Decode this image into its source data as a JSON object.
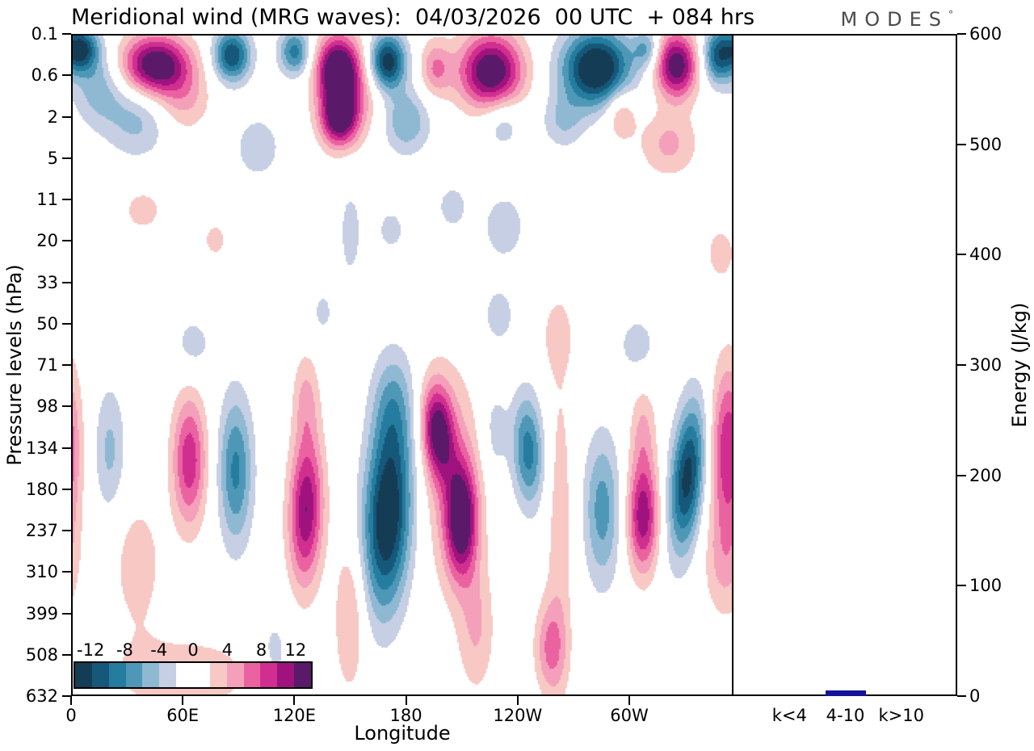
{
  "header": {
    "logo_letters": "MODES",
    "logo_degree": "°"
  },
  "chart_data": {
    "type": "heatmap",
    "title": "Meridional wind (MRG waves):  04/03/2026  00 UTC  + 084 hrs",
    "x_axis": {
      "label": "Longitude",
      "tick_labels": [
        "0",
        "60E",
        "120E",
        "180",
        "120W",
        "60W"
      ],
      "tick_lons": [
        0,
        60,
        120,
        180,
        240,
        300
      ],
      "lon_range": [
        0,
        356
      ]
    },
    "y_axis": {
      "label": "Pressure levels (hPa)",
      "tick_labels": [
        "0.1",
        "0.6",
        "2",
        "5",
        "11",
        "20",
        "33",
        "50",
        "71",
        "98",
        "134",
        "180",
        "237",
        "310",
        "399",
        "508",
        "632"
      ]
    },
    "colorbar": {
      "tick_labels": [
        "-12",
        "-8",
        "-4",
        "0",
        "4",
        "8",
        "12"
      ],
      "level_boundaries": [
        -12,
        -10,
        -8,
        -6,
        -4,
        -2,
        0,
        2,
        4,
        6,
        8,
        10,
        12
      ],
      "band_colors": [
        "#153c55",
        "#16587a",
        "#247c9e",
        "#4f97b7",
        "#8fb9d3",
        "#c6cfe3",
        "#ffffff",
        "#ffffff",
        "#f8c8c5",
        "#f4a0ba",
        "#eb62a1",
        "#d02f90",
        "#a0137e",
        "#5a1a69"
      ]
    },
    "field_anomalies": [
      {
        "lon": 4,
        "y": 0.02,
        "sx": 7,
        "sy": 0.025,
        "amp": -13
      },
      {
        "lon": 14,
        "y": 0.08,
        "sx": 10,
        "sy": 0.04,
        "amp": -5
      },
      {
        "lon": 35,
        "y": 0.13,
        "sx": 12,
        "sy": 0.04,
        "amp": -4.5
      },
      {
        "lon": 45,
        "y": 0.045,
        "sx": 13,
        "sy": 0.032,
        "amp": 15
      },
      {
        "lon": 60,
        "y": 0.1,
        "sx": 10,
        "sy": 0.035,
        "amp": 4
      },
      {
        "lon": 86,
        "y": 0.03,
        "sx": 7,
        "sy": 0.028,
        "amp": -12
      },
      {
        "lon": 100,
        "y": 0.17,
        "sx": 9,
        "sy": 0.035,
        "amp": -3.5
      },
      {
        "lon": 120,
        "y": 0.025,
        "sx": 6,
        "sy": 0.025,
        "amp": -9
      },
      {
        "lon": 143,
        "y": 0.05,
        "sx": 8,
        "sy": 0.035,
        "amp": 14
      },
      {
        "lon": 144,
        "y": 0.125,
        "sx": 7,
        "sy": 0.03,
        "amp": 13
      },
      {
        "lon": 150,
        "y": 0.085,
        "sx": 12,
        "sy": 0.05,
        "amp": 5
      },
      {
        "lon": 170,
        "y": 0.04,
        "sx": 7,
        "sy": 0.03,
        "amp": -14
      },
      {
        "lon": 180,
        "y": 0.13,
        "sx": 9,
        "sy": 0.035,
        "amp": -6
      },
      {
        "lon": 196,
        "y": 0.05,
        "sx": 6,
        "sy": 0.03,
        "amp": 6
      },
      {
        "lon": 226,
        "y": 0.055,
        "sx": 12,
        "sy": 0.04,
        "amp": 15
      },
      {
        "lon": 232,
        "y": 0.13,
        "sx": 8,
        "sy": 0.03,
        "amp": -4
      },
      {
        "lon": 265,
        "y": 0.13,
        "sx": 8,
        "sy": 0.03,
        "amp": -4
      },
      {
        "lon": 283,
        "y": 0.05,
        "sx": 13,
        "sy": 0.04,
        "amp": -16
      },
      {
        "lon": 296,
        "y": 0.115,
        "sx": 6,
        "sy": 0.03,
        "amp": 5
      },
      {
        "lon": 310,
        "y": 0.02,
        "sx": 5,
        "sy": 0.02,
        "amp": -6
      },
      {
        "lon": 326,
        "y": 0.045,
        "sx": 8,
        "sy": 0.035,
        "amp": 14
      },
      {
        "lon": 322,
        "y": 0.165,
        "sx": 11,
        "sy": 0.035,
        "amp": 4.5
      },
      {
        "lon": 349,
        "y": 0.03,
        "sx": 6,
        "sy": 0.03,
        "amp": -11
      },
      {
        "lon": 38,
        "y": 0.265,
        "sx": 9,
        "sy": 0.028,
        "amp": 2.8
      },
      {
        "lon": 77,
        "y": 0.31,
        "sx": 6,
        "sy": 0.025,
        "amp": 2.6
      },
      {
        "lon": 150,
        "y": 0.3,
        "sx": 5,
        "sy": 0.06,
        "amp": -2.8
      },
      {
        "lon": 172,
        "y": 0.295,
        "sx": 7,
        "sy": 0.03,
        "amp": -2.6
      },
      {
        "lon": 205,
        "y": 0.26,
        "sx": 7,
        "sy": 0.03,
        "amp": -2.8
      },
      {
        "lon": 233,
        "y": 0.29,
        "sx": 9,
        "sy": 0.04,
        "amp": -3.2
      },
      {
        "lon": 350,
        "y": 0.33,
        "sx": 7,
        "sy": 0.035,
        "amp": 2.8
      },
      {
        "lon": 230,
        "y": 0.425,
        "sx": 7,
        "sy": 0.035,
        "amp": -3
      },
      {
        "lon": 262,
        "y": 0.455,
        "sx": 6,
        "sy": 0.04,
        "amp": 2.8
      },
      {
        "lon": 305,
        "y": 0.47,
        "sx": 8,
        "sy": 0.035,
        "amp": -3
      },
      {
        "lon": 65,
        "y": 0.47,
        "sx": 8,
        "sy": 0.035,
        "amp": -3
      },
      {
        "lon": 135,
        "y": 0.42,
        "sx": 5,
        "sy": 0.03,
        "amp": -2.5
      },
      {
        "lon": 354,
        "y": 0.63,
        "sx": 7,
        "sy": 0.09,
        "amp": 10
      },
      {
        "lon": 352,
        "y": 0.8,
        "sx": 8,
        "sy": 0.06,
        "amp": 4
      },
      {
        "lon": 20,
        "y": 0.63,
        "sx": 6,
        "sy": 0.07,
        "amp": -4.5
      },
      {
        "lon": 35,
        "y": 0.8,
        "sx": 10,
        "sy": 0.07,
        "amp": 3.2
      },
      {
        "lon": 63,
        "y": 0.645,
        "sx": 6.5,
        "sy": 0.07,
        "amp": 9.5
      },
      {
        "lon": 88,
        "y": 0.66,
        "sx": 6.5,
        "sy": 0.08,
        "amp": -8.5
      },
      {
        "lon": 126,
        "y": 0.72,
        "sx": 6.5,
        "sy": 0.08,
        "amp": 12,
        "tilt": -8
      },
      {
        "lon": 126,
        "y": 0.55,
        "sx": 5,
        "sy": 0.05,
        "amp": 4
      },
      {
        "lon": 170,
        "y": 0.73,
        "sx": 9,
        "sy": 0.1,
        "amp": -15,
        "tilt": -15
      },
      {
        "lon": 173,
        "y": 0.56,
        "sx": 8,
        "sy": 0.06,
        "amp": -5
      },
      {
        "lon": 150,
        "y": 0.88,
        "sx": 6,
        "sy": 0.08,
        "amp": 4.5
      },
      {
        "lon": 197,
        "y": 0.6,
        "sx": 6,
        "sy": 0.05,
        "amp": 12,
        "tilt": 18
      },
      {
        "lon": 210,
        "y": 0.735,
        "sx": 6,
        "sy": 0.06,
        "amp": 13
      },
      {
        "lon": 205,
        "y": 0.67,
        "sx": 11,
        "sy": 0.12,
        "amp": 4.5
      },
      {
        "lon": 218,
        "y": 0.9,
        "sx": 7,
        "sy": 0.07,
        "amp": 4
      },
      {
        "lon": 228,
        "y": 0.6,
        "sx": 5,
        "sy": 0.05,
        "amp": -3
      },
      {
        "lon": 246,
        "y": 0.63,
        "sx": 6,
        "sy": 0.06,
        "amp": -9,
        "tilt": 12
      },
      {
        "lon": 263,
        "y": 0.74,
        "sx": 5.5,
        "sy": 0.18,
        "amp": 3.2
      },
      {
        "lon": 258,
        "y": 0.93,
        "sx": 6,
        "sy": 0.05,
        "amp": 6
      },
      {
        "lon": 286,
        "y": 0.72,
        "sx": 7,
        "sy": 0.08,
        "amp": -7
      },
      {
        "lon": 308,
        "y": 0.73,
        "sx": 6,
        "sy": 0.06,
        "amp": 11.5
      },
      {
        "lon": 308,
        "y": 0.6,
        "sx": 5,
        "sy": 0.05,
        "amp": 4
      },
      {
        "lon": 332,
        "y": 0.67,
        "sx": 6.5,
        "sy": 0.08,
        "amp": -13,
        "tilt": -30
      },
      {
        "lon": 60,
        "y": 0.97,
        "sx": 35,
        "sy": 0.05,
        "amp": 3
      },
      {
        "lon": 109,
        "y": 0.94,
        "sx": 8,
        "sy": 0.05,
        "amp": -3.2
      }
    ],
    "energy_panel": {
      "type": "bar",
      "y_axis": {
        "label": "Energy (J/kg)",
        "tick_labels": [
          "0",
          "100",
          "200",
          "300",
          "400",
          "500",
          "600"
        ],
        "range": [
          0,
          600
        ]
      },
      "categories": [
        "k<4",
        "4-10",
        "k>10"
      ],
      "values": [
        0,
        5,
        0
      ],
      "bar_color": "#15159b"
    }
  }
}
